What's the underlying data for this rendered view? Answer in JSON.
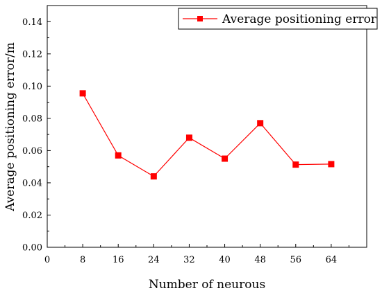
{
  "chart_data": {
    "type": "line",
    "xlabel": "Number of neurous",
    "ylabel": "Average positioning error/m",
    "xlim": [
      0,
      72
    ],
    "ylim": [
      0,
      0.15
    ],
    "x_ticks": [
      "0",
      "8",
      "16",
      "24",
      "32",
      "40",
      "48",
      "56",
      "64"
    ],
    "y_ticks": [
      "0.00",
      "0.02",
      "0.04",
      "0.06",
      "0.08",
      "0.10",
      "0.12",
      "0.14"
    ],
    "series": [
      {
        "name": "Average positioning error",
        "color": "#ff0000",
        "marker": "square",
        "x": [
          8,
          16,
          24,
          32,
          40,
          48,
          56,
          64
        ],
        "y": [
          0.0955,
          0.057,
          0.044,
          0.068,
          0.055,
          0.077,
          0.0513,
          0.0516
        ]
      }
    ],
    "legend_position": "top-right",
    "grid": false
  }
}
